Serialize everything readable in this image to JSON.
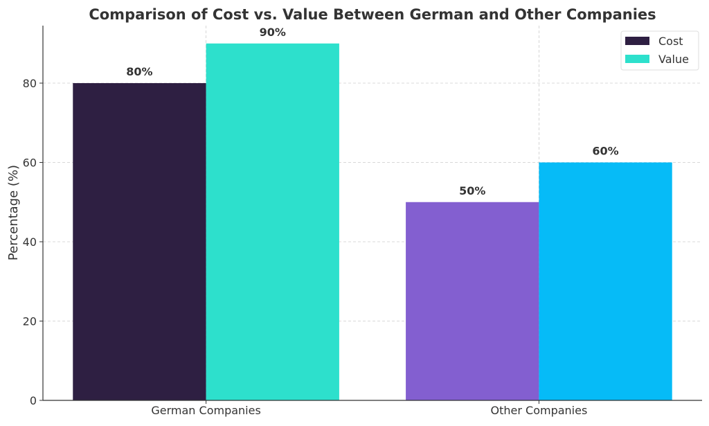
{
  "chart_data": {
    "type": "bar",
    "title": "Comparison of Cost vs. Value Between German and Other Companies",
    "xlabel": "",
    "ylabel": "Percentage (%)",
    "categories": [
      "German Companies",
      "Other Companies"
    ],
    "series": [
      {
        "name": "Cost",
        "values": [
          80,
          50
        ],
        "colors": [
          "#2e1f42",
          "#835fd0"
        ],
        "labels": [
          "80%",
          "50%"
        ]
      },
      {
        "name": "Value",
        "values": [
          90,
          60
        ],
        "colors": [
          "#2de0cc",
          "#06bbf7"
        ],
        "labels": [
          "90%",
          "60%"
        ]
      }
    ],
    "legend": [
      {
        "label": "Cost",
        "color": "#2e1f42"
      },
      {
        "label": "Value",
        "color": "#2de0cc"
      }
    ],
    "legend_position": "top-right",
    "yticks": [
      0,
      20,
      40,
      60,
      80
    ],
    "ytick_labels": [
      "0",
      "20",
      "40",
      "60",
      "80"
    ],
    "ylim": [
      0,
      94.5
    ],
    "xlim": [
      -0.49,
      1.49
    ],
    "bar_width": 0.4,
    "grid": true
  }
}
